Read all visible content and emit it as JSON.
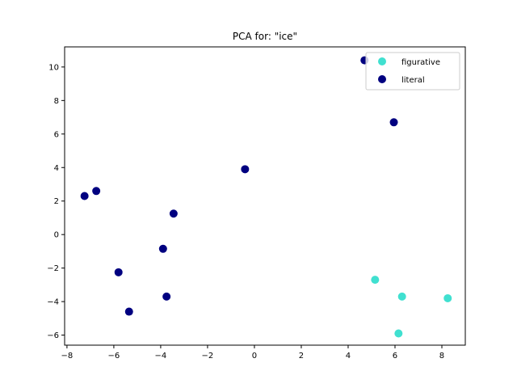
{
  "chart_data": {
    "type": "scatter",
    "title": "PCA for: \"ice\"",
    "xlabel": "",
    "ylabel": "",
    "xlim": [
      -8.1,
      9.0
    ],
    "ylim": [
      -6.6,
      11.2
    ],
    "xticks": [
      -8,
      -6,
      -4,
      -2,
      0,
      2,
      4,
      6,
      8
    ],
    "yticks": [
      -6,
      -4,
      -2,
      0,
      2,
      4,
      6,
      8,
      10
    ],
    "grid": false,
    "legend_position": "top-right",
    "series": [
      {
        "name": "figurative",
        "color": "#40e0d0",
        "points": [
          {
            "x": 5.15,
            "y": -2.7
          },
          {
            "x": 6.3,
            "y": -3.7
          },
          {
            "x": 8.25,
            "y": -3.8
          },
          {
            "x": 6.15,
            "y": -5.9
          }
        ]
      },
      {
        "name": "literal",
        "color": "#000080",
        "points": [
          {
            "x": 4.7,
            "y": 10.4
          },
          {
            "x": 5.95,
            "y": 6.7
          },
          {
            "x": -0.4,
            "y": 3.9
          },
          {
            "x": -7.25,
            "y": 2.3
          },
          {
            "x": -6.75,
            "y": 2.6
          },
          {
            "x": -3.45,
            "y": 1.25
          },
          {
            "x": -3.9,
            "y": -0.85
          },
          {
            "x": -5.8,
            "y": -2.25
          },
          {
            "x": -3.75,
            "y": -3.7
          },
          {
            "x": -5.35,
            "y": -4.6
          }
        ]
      }
    ]
  }
}
